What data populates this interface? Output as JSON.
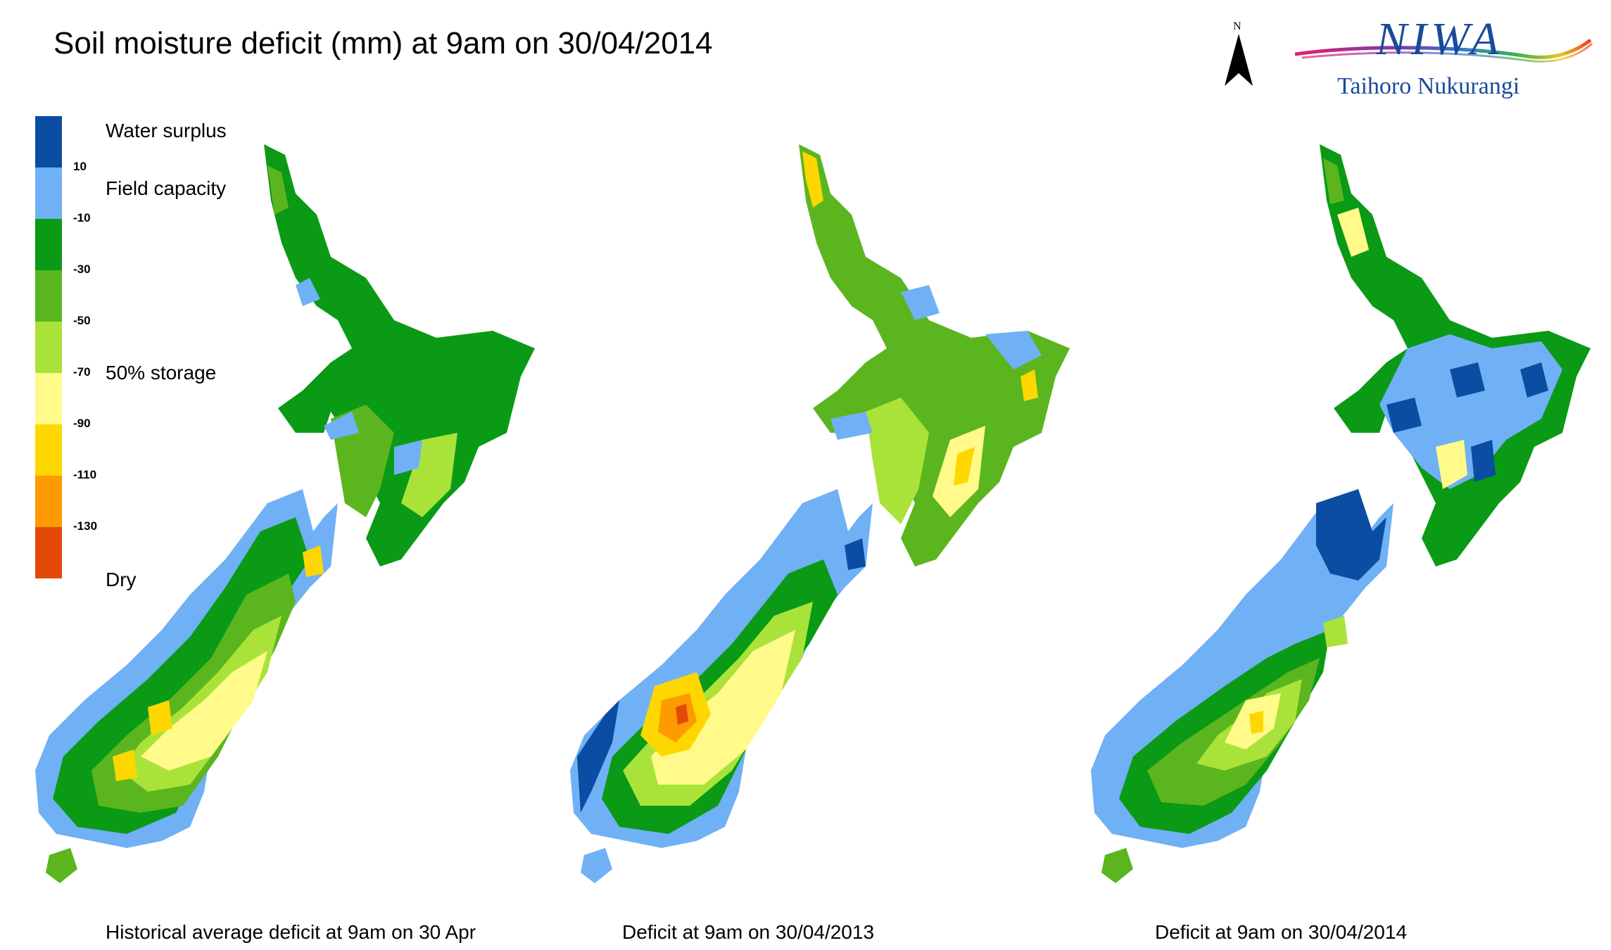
{
  "title": "Soil moisture deficit (mm) at  9am on 30/04/2014",
  "north_label": "N",
  "logo": {
    "word": "NIWA",
    "subtitle": "Taihoro Nukurangi"
  },
  "legend": {
    "colors": [
      "#0a4da2",
      "#70b0f5",
      "#0a9a15",
      "#5bb51e",
      "#a9e33a",
      "#fffa8a",
      "#ffd700",
      "#ff9a00",
      "#e34a0a"
    ],
    "ticks": [
      "10",
      "-10",
      "-30",
      "-50",
      "-70",
      "-90",
      "-110",
      "-130"
    ],
    "labels": {
      "water_surplus": "Water surplus",
      "field_capacity": "Field capacity",
      "storage": "50% storage",
      "dry": "Dry"
    }
  },
  "maps": [
    {
      "caption": "Historical average deficit at  9am on 30 Apr",
      "icons": "nz-map-historical"
    },
    {
      "caption": "Deficit at  9am on 30/04/2013",
      "icons": "nz-map-2013"
    },
    {
      "caption": "Deficit at  9am on 30/04/2014",
      "icons": "nz-map-2014"
    }
  ]
}
